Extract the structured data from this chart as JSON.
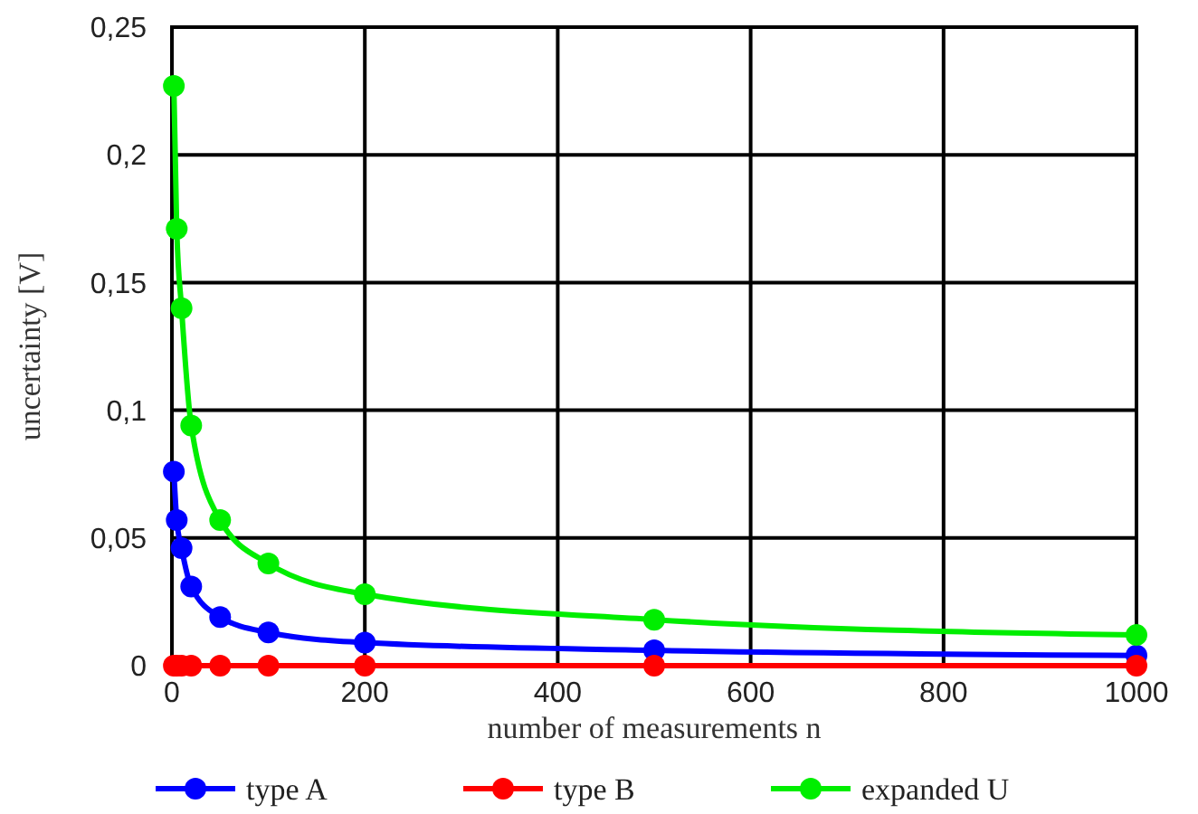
{
  "chart_data": {
    "type": "line",
    "xlabel": "number of measurements n",
    "ylabel": "uncertainty [V]",
    "x": [
      2,
      5,
      10,
      20,
      50,
      100,
      200,
      500,
      1000
    ],
    "xlim": [
      0,
      1000
    ],
    "xticks": [
      0,
      200,
      400,
      600,
      800,
      1000
    ],
    "ylim": [
      0,
      0.25
    ],
    "yticks": [
      0,
      {
        "value": 0.05,
        "label": "0,05"
      },
      {
        "value": 0.1,
        "label": "0,1"
      },
      {
        "value": 0.15,
        "label": "0,15"
      },
      {
        "value": 0.2,
        "label": "0,2"
      },
      {
        "value": 0.25,
        "label": "0,25"
      }
    ],
    "grid": true,
    "legend": "bottom",
    "marker": "circle",
    "line_style": "solid",
    "series": [
      {
        "name": "type A",
        "color": "#0000ff",
        "values": [
          0.076,
          0.057,
          0.046,
          0.031,
          0.019,
          0.013,
          0.009,
          0.006,
          0.004
        ]
      },
      {
        "name": "type B",
        "color": "#ff0000",
        "values": [
          0,
          0,
          0,
          0,
          0,
          0,
          0,
          0,
          0
        ]
      },
      {
        "name": "expanded U",
        "color": "#00ee00",
        "values": [
          0.227,
          0.171,
          0.14,
          0.094,
          0.057,
          0.04,
          0.028,
          0.018,
          0.012
        ]
      }
    ]
  }
}
